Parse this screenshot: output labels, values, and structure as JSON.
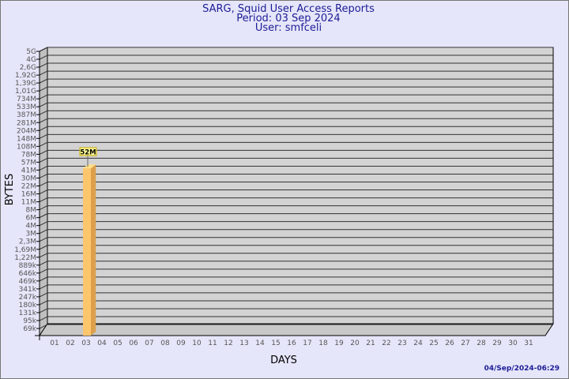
{
  "chart_data": {
    "type": "bar",
    "title": "SARG, Squid User Access Reports",
    "subtitle_lines": [
      "Period: 03 Sep 2024",
      "User: smfceli"
    ],
    "xlabel": "DAYS",
    "ylabel": "BYTES",
    "y_scale": "log",
    "grid": true,
    "categories": [
      "01",
      "02",
      "03",
      "04",
      "05",
      "06",
      "07",
      "08",
      "09",
      "10",
      "11",
      "12",
      "13",
      "14",
      "15",
      "16",
      "17",
      "18",
      "19",
      "20",
      "21",
      "22",
      "23",
      "24",
      "25",
      "26",
      "27",
      "28",
      "29",
      "30",
      "31"
    ],
    "y_tick_labels": [
      "5G",
      "4G",
      "2,6G",
      "1,92G",
      "1,39G",
      "1,01G",
      "734M",
      "533M",
      "387M",
      "281M",
      "204M",
      "148M",
      "108M",
      "78M",
      "57M",
      "41M",
      "30M",
      "22M",
      "16M",
      "11M",
      "8M",
      "6M",
      "4M",
      "3M",
      "2,3M",
      "1,69M",
      "1,22M",
      "889k",
      "646k",
      "469k",
      "341k",
      "247k",
      "180k",
      "131k",
      "95k",
      "69k"
    ],
    "series": [
      {
        "values": [
          0,
          0,
          52000000,
          0,
          0,
          0,
          0,
          0,
          0,
          0,
          0,
          0,
          0,
          0,
          0,
          0,
          0,
          0,
          0,
          0,
          0,
          0,
          0,
          0,
          0,
          0,
          0,
          0,
          0,
          0,
          0
        ],
        "data_labels": {
          "03": "52M"
        }
      }
    ],
    "colors": {
      "bar_front": "#fdc56c",
      "bar_side": "#dca04c",
      "bar_top": "#ffe08a",
      "wall": "#d3d3d3",
      "label_bg": "#ffff99",
      "title": "#1c1c96"
    },
    "footer": "04/Sep/2024-06:29"
  }
}
